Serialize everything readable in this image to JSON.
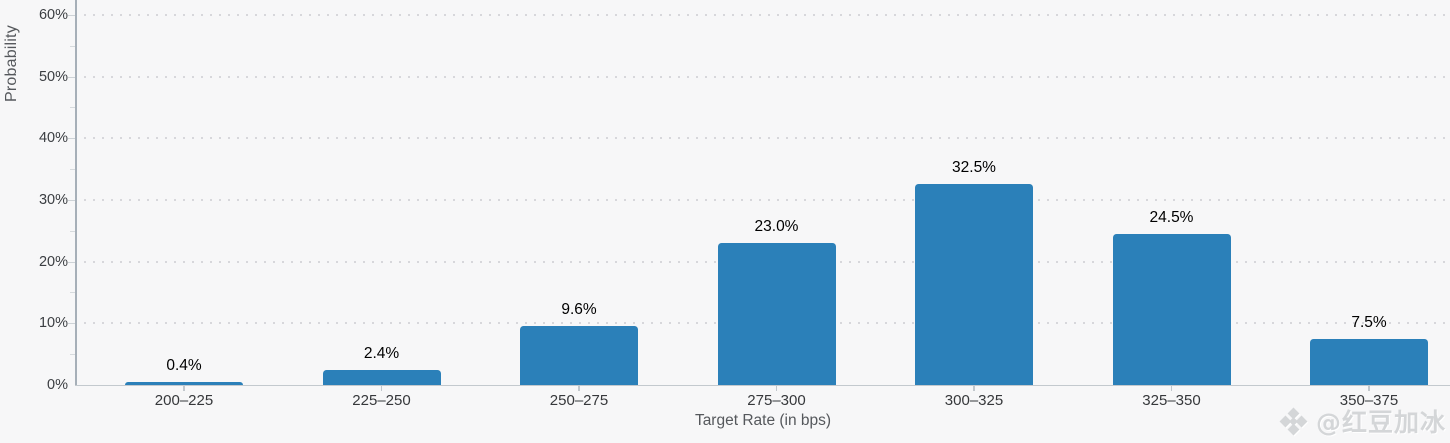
{
  "chart_data": {
    "type": "bar",
    "title": "",
    "xlabel": "Target Rate (in bps)",
    "ylabel": "Probability",
    "categories": [
      "200–225",
      "225–250",
      "250–275",
      "275–300",
      "300–325",
      "325–350",
      "350–375"
    ],
    "values": [
      0.4,
      2.4,
      9.6,
      23.0,
      32.5,
      24.5,
      7.5
    ],
    "value_labels": [
      "0.4%",
      "2.4%",
      "9.6%",
      "23.0%",
      "32.5%",
      "24.5%",
      "7.5%"
    ],
    "yticks": [
      0,
      10,
      20,
      30,
      40,
      50,
      60
    ],
    "ytick_labels": [
      "0%",
      "10%",
      "20%",
      "30%",
      "40%",
      "50%",
      "60%"
    ],
    "ylim": [
      0,
      62.4
    ],
    "grid": "horizontal-dotted",
    "legend": null,
    "bar_color": "#2b80b9",
    "background_color": "#f7f7f8"
  },
  "watermark": {
    "logo_icon": "binance-diamond-logo-icon",
    "handle": "@红豆加冰"
  },
  "colors": {
    "bar_blue": "#2b80b9",
    "grid_dot": "#d7d7db",
    "axis_line": "#a6afb8",
    "tick_text": "#3b3e42",
    "axis_title_text": "#55585c",
    "value_text": "#000000",
    "watermark_gray": "#d4d6d8"
  }
}
